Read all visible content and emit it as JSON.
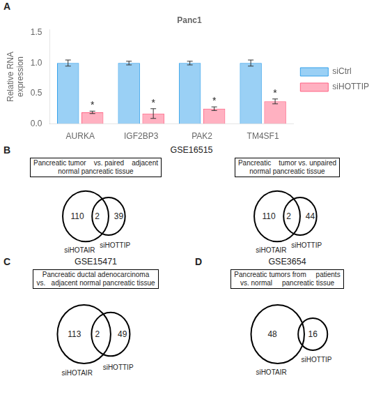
{
  "chart_data": [
    {
      "type": "bar",
      "panel_label": "A",
      "title": "Panc1",
      "ylabel": "Relative RNA\nexpression",
      "categories": [
        "AURKA",
        "IGF2BP3",
        "PAK2",
        "TM4SF1"
      ],
      "series": [
        {
          "name": "siCtrl",
          "values": [
            1.0,
            1.0,
            1.0,
            1.0
          ],
          "errors": [
            0.05,
            0.03,
            0.03,
            0.05
          ]
        },
        {
          "name": "siHOTTIP",
          "values": [
            0.19,
            0.17,
            0.25,
            0.37
          ],
          "errors": [
            0.02,
            0.08,
            0.03,
            0.04
          ]
        }
      ],
      "ylim": [
        0,
        1.55
      ],
      "yticks": [
        {
          "value": 0,
          "label": "0.0"
        },
        {
          "value": 0.5,
          "label": "0.5"
        },
        {
          "value": 1.0,
          "label": "1.0"
        },
        {
          "value": 1.5,
          "label": "1.5"
        }
      ],
      "grid": false,
      "legend": "right",
      "annotations": [
        {
          "text": "*",
          "series": "siHOTTIP",
          "category": "AURKA"
        },
        {
          "text": "*",
          "series": "siHOTTIP",
          "category": "IGF2BP3"
        },
        {
          "text": "*",
          "series": "siHOTTIP",
          "category": "PAK2"
        },
        {
          "text": "*",
          "series": "siHOTTIP",
          "category": "TM4SF1"
        }
      ]
    },
    {
      "type": "venn",
      "panel_label": "B",
      "title": "GSE16515",
      "diagrams": [
        {
          "subtitle": "Pancreatic tumor    vs. paired    adjacent\nnormal pancreatic tissue",
          "categories": [
            "siHOTAIR",
            "siHOTTIP"
          ],
          "values": [
            110,
            2,
            39
          ]
        },
        {
          "subtitle": "Pancreatic    tumor vs. unpaired\nnormal pancreatic tissue",
          "categories": [
            "siHOTAIR",
            "siHOTTIP"
          ],
          "values": [
            110,
            2,
            44
          ]
        }
      ]
    },
    {
      "type": "venn",
      "panel_label": "C",
      "title": "GSE15471",
      "diagrams": [
        {
          "subtitle": "Pancreatic ductal adenocarcinoma\nvs.   adjacent normal pancreatic tissue",
          "categories": [
            "siHOTAIR",
            "siHOTTIP"
          ],
          "values": [
            113,
            2,
            49
          ]
        }
      ]
    },
    {
      "type": "venn",
      "panel_label": "D",
      "title": "GSE3654",
      "diagrams": [
        {
          "subtitle": "Pancreatic tumors from     patients\nvs. normal     pancreatic tissue",
          "categories": [
            "siHOTAIR",
            "siHOTTIP"
          ],
          "values": [
            48,
            null,
            16
          ]
        }
      ]
    }
  ]
}
